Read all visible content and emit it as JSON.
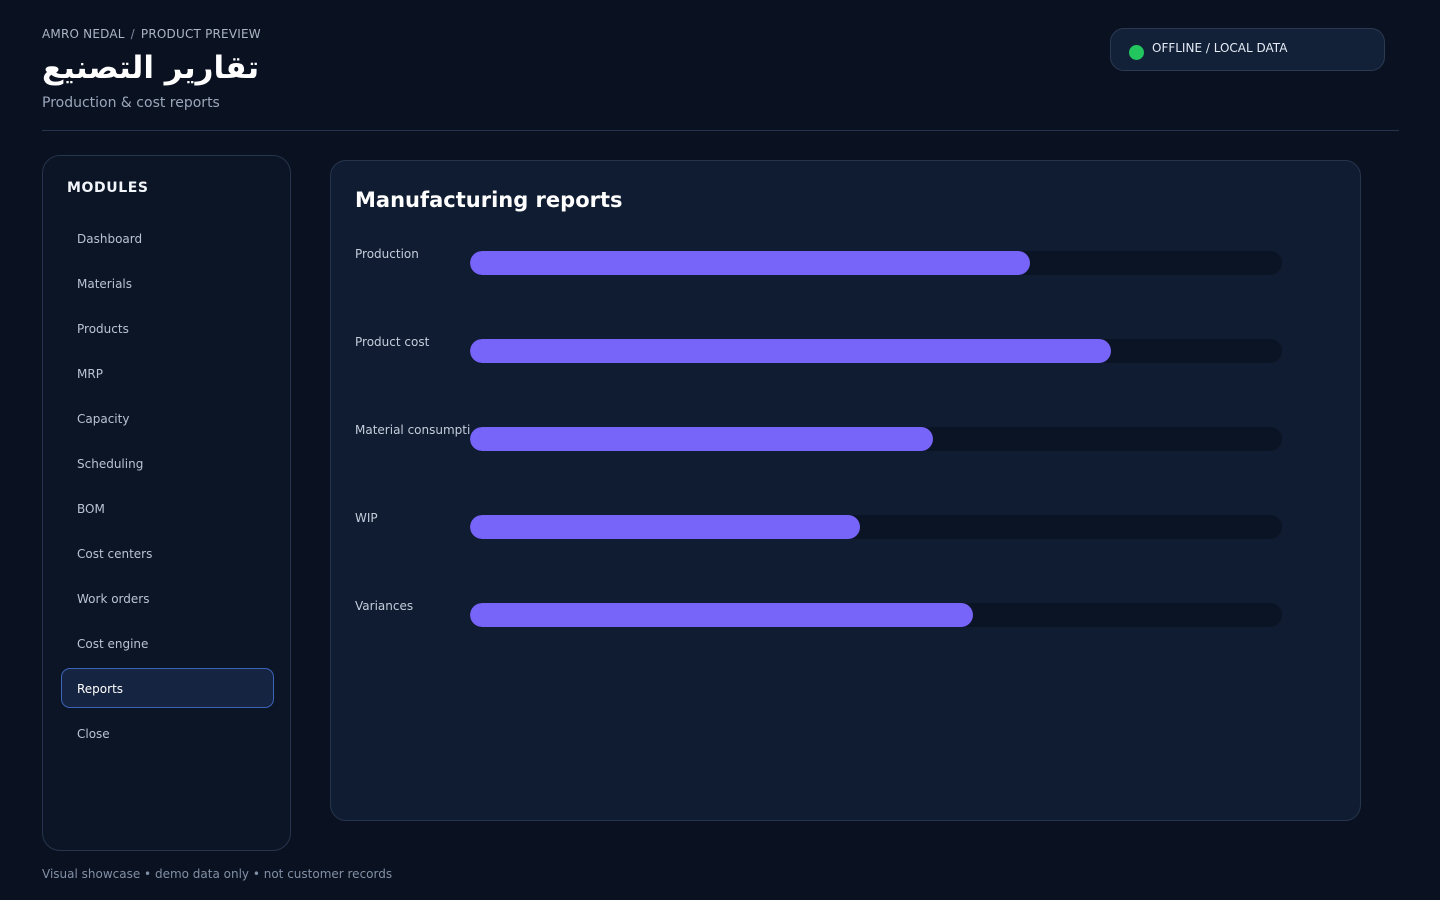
{
  "header": {
    "breadcrumb": [
      "AMRO NEDAL",
      "PRODUCT PREVIEW"
    ],
    "breadcrumb_separator": "/",
    "title": "تقارير التصنيع",
    "subtitle": "Production & cost reports"
  },
  "status": {
    "label": "OFFLINE / LOCAL DATA",
    "dot_color": "#22c55e"
  },
  "sidebar": {
    "heading": "MODULES",
    "items": [
      {
        "label": "Dashboard",
        "active": false
      },
      {
        "label": "Materials",
        "active": false
      },
      {
        "label": "Products",
        "active": false
      },
      {
        "label": "MRP",
        "active": false
      },
      {
        "label": "Capacity",
        "active": false
      },
      {
        "label": "Scheduling",
        "active": false
      },
      {
        "label": "BOM",
        "active": false
      },
      {
        "label": "Cost centers",
        "active": false
      },
      {
        "label": "Work orders",
        "active": false
      },
      {
        "label": "Cost engine",
        "active": false
      },
      {
        "label": "Reports",
        "active": true
      },
      {
        "label": "Close",
        "active": false
      }
    ]
  },
  "main": {
    "title": "Manufacturing reports",
    "reports": [
      {
        "label": "Production",
        "fill_fraction": 0.69
      },
      {
        "label": "Product cost",
        "fill_fraction": 0.79
      },
      {
        "label": "Material consumption",
        "fill_fraction": 0.57
      },
      {
        "label": "WIP",
        "fill_fraction": 0.48
      },
      {
        "label": "Variances",
        "fill_fraction": 0.62
      }
    ],
    "bar_color": "#7764f8"
  },
  "footer": {
    "note": "Visual showcase • demo data only • not customer records"
  }
}
